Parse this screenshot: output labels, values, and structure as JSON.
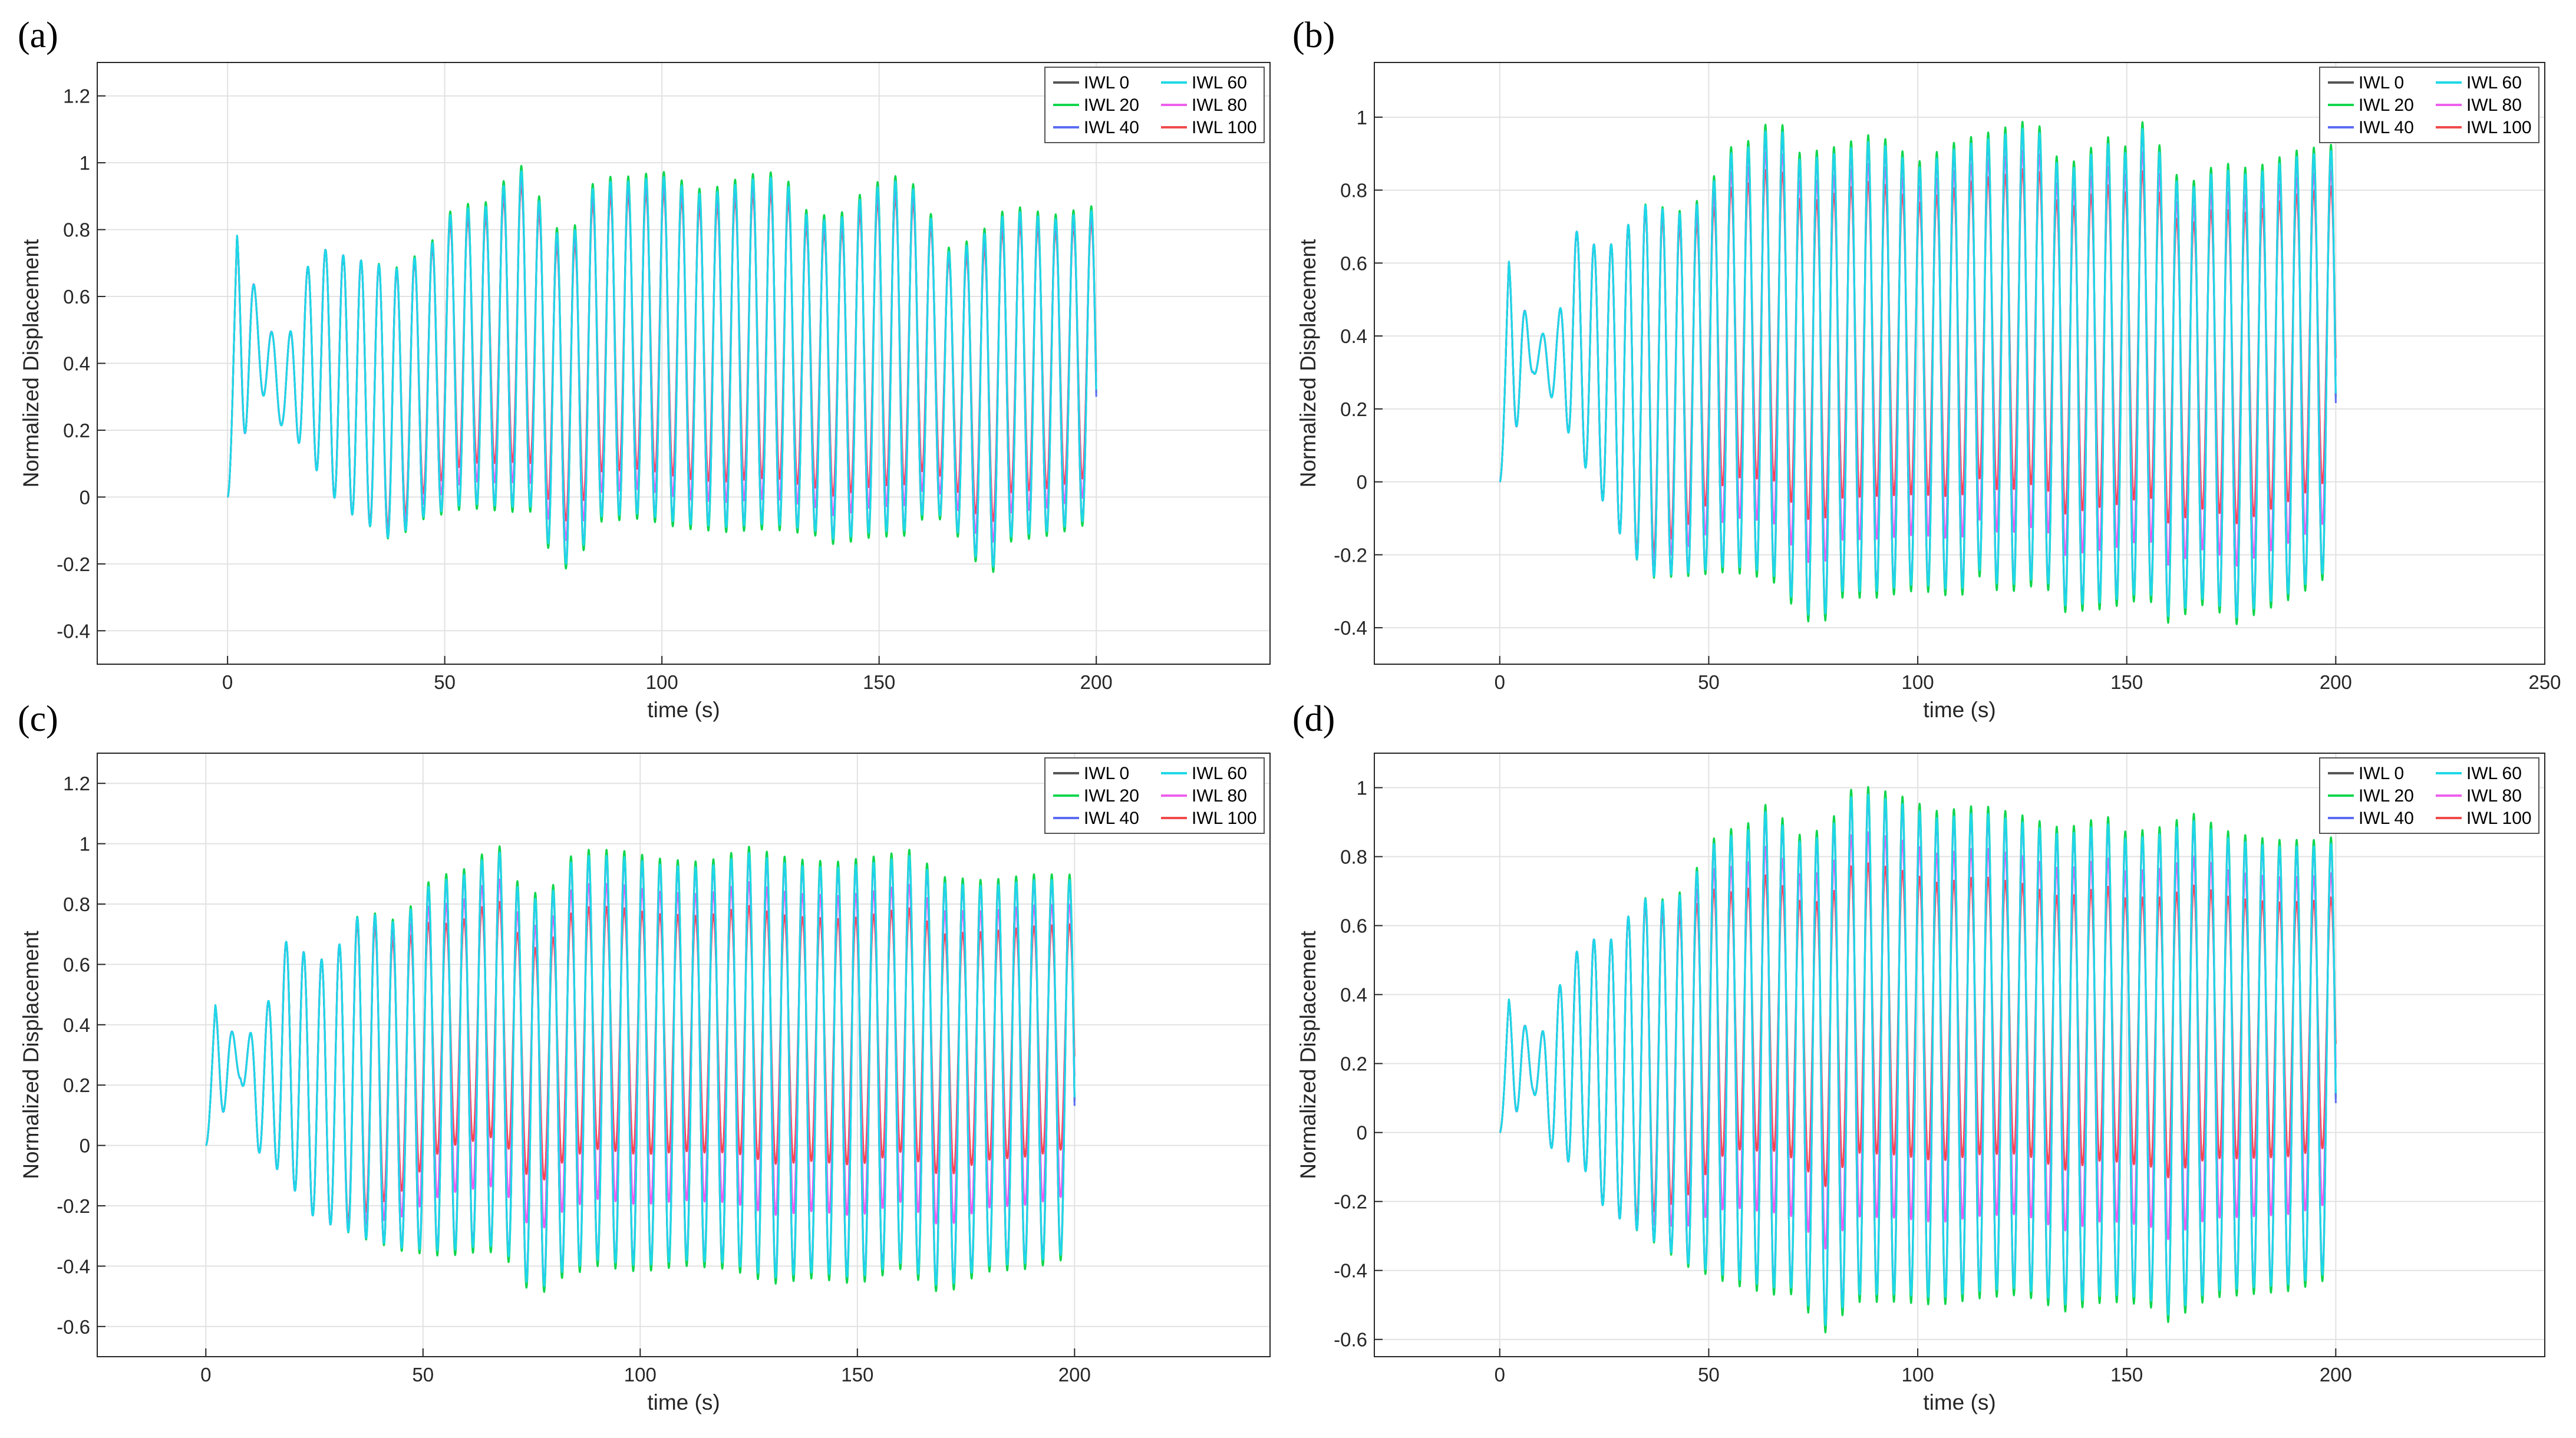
{
  "chart_data": [
    {
      "panel": "(a)",
      "type": "line",
      "xlabel": "time (s)",
      "ylabel": "Normalized Displacement",
      "xlim": [
        -30,
        240
      ],
      "ylim": [
        -0.5,
        1.3
      ],
      "xticks": [
        0,
        50,
        100,
        150,
        200
      ],
      "xtick_labels": [
        "0",
        "50",
        "100",
        "150",
        "200"
      ],
      "yticks": [
        -0.4,
        -0.2,
        0,
        0.2,
        0.4,
        0.6,
        0.8,
        1,
        1.2
      ],
      "ytick_labels": [
        "-0.4",
        "-0.2",
        "0",
        "0.2",
        "0.4",
        "0.6",
        "0.8",
        "1",
        "1.2"
      ],
      "grid": true,
      "legend_position": "top-right",
      "legend": [
        "IWL 0",
        "IWL 20",
        "IWL 40",
        "IWL 60",
        "IWL 80",
        "IWL 100"
      ],
      "series": [
        {
          "name": "IWL 0",
          "color": "#555555"
        },
        {
          "name": "IWL 20",
          "color": "#11d64c"
        },
        {
          "name": "IWL 40",
          "color": "#5b6cf2"
        },
        {
          "name": "IWL 60",
          "color": "#1ed8e8"
        },
        {
          "name": "IWL 80",
          "color": "#ee5fee"
        },
        {
          "name": "IWL 100",
          "color": "#f04a4a"
        }
      ],
      "signal": {
        "t_start": 0,
        "t_end": 200,
        "period": 4.1,
        "max_envelope": [
          [
            0,
            0.79
          ],
          [
            3,
            0.79
          ],
          [
            7,
            0.59
          ],
          [
            13,
            0.41
          ],
          [
            16,
            0.59
          ],
          [
            20,
            0.75
          ],
          [
            30,
            0.71
          ],
          [
            40,
            0.68
          ],
          [
            48,
            0.77
          ],
          [
            52,
            0.86
          ],
          [
            60,
            0.87
          ],
          [
            67,
            0.99
          ],
          [
            72,
            0.88
          ],
          [
            78,
            0.74
          ],
          [
            85,
            0.95
          ],
          [
            90,
            0.94
          ],
          [
            100,
            0.96
          ],
          [
            110,
            0.9
          ],
          [
            120,
            0.95
          ],
          [
            128,
            0.96
          ],
          [
            132,
            0.85
          ],
          [
            140,
            0.82
          ],
          [
            148,
            0.92
          ],
          [
            155,
            0.95
          ],
          [
            160,
            0.9
          ],
          [
            165,
            0.73
          ],
          [
            172,
            0.76
          ],
          [
            180,
            0.86
          ],
          [
            190,
            0.83
          ],
          [
            200,
            0.86
          ]
        ],
        "min_envelope": [
          [
            0,
            0.0
          ],
          [
            7,
            0.33
          ],
          [
            13,
            0.2
          ],
          [
            16,
            0.17
          ],
          [
            26,
            -0.03
          ],
          [
            38,
            -0.13
          ],
          [
            45,
            -0.06
          ],
          [
            55,
            -0.02
          ],
          [
            65,
            -0.03
          ],
          [
            70,
            -0.03
          ],
          [
            76,
            -0.2
          ],
          [
            80,
            -0.2
          ],
          [
            85,
            -0.06
          ],
          [
            95,
            -0.05
          ],
          [
            105,
            -0.08
          ],
          [
            115,
            -0.09
          ],
          [
            125,
            -0.08
          ],
          [
            135,
            -0.1
          ],
          [
            140,
            -0.13
          ],
          [
            150,
            -0.1
          ],
          [
            155,
            -0.11
          ],
          [
            162,
            -0.03
          ],
          [
            170,
            -0.13
          ],
          [
            175,
            -0.24
          ],
          [
            180,
            -0.12
          ],
          [
            190,
            -0.1
          ],
          [
            200,
            -0.06
          ]
        ],
        "min_reduction_tail": 0.28,
        "series_spread": 0.18
      }
    },
    {
      "panel": "(b)",
      "type": "line",
      "xlabel": "time (s)",
      "ylabel": "Normalized Displacement",
      "xlim": [
        -30,
        250
      ],
      "ylim": [
        -0.5,
        1.15
      ],
      "xticks": [
        0,
        50,
        100,
        150,
        200,
        250
      ],
      "xtick_labels": [
        "0",
        "50",
        "100",
        "150",
        "200",
        "250"
      ],
      "yticks": [
        -0.4,
        -0.2,
        0,
        0.2,
        0.4,
        0.6,
        0.8,
        1
      ],
      "ytick_labels": [
        "-0.4",
        "-0.2",
        "0",
        "0.2",
        "0.4",
        "0.6",
        "0.8",
        "1"
      ],
      "grid": true,
      "legend_position": "top-right",
      "legend": [
        "IWL 0",
        "IWL 20",
        "IWL 40",
        "IWL 60",
        "IWL 80",
        "IWL 100"
      ],
      "series": [
        {
          "name": "IWL 0",
          "color": "#555555"
        },
        {
          "name": "IWL 20",
          "color": "#11d64c"
        },
        {
          "name": "IWL 40",
          "color": "#5b6cf2"
        },
        {
          "name": "IWL 60",
          "color": "#1ed8e8"
        },
        {
          "name": "IWL 80",
          "color": "#ee5fee"
        },
        {
          "name": "IWL 100",
          "color": "#f04a4a"
        }
      ],
      "signal": {
        "t_start": 0,
        "t_end": 200,
        "period": 4.1,
        "max_envelope": [
          [
            0,
            0.61
          ],
          [
            3,
            0.61
          ],
          [
            8,
            0.38
          ],
          [
            14,
            0.45
          ],
          [
            18,
            0.69
          ],
          [
            25,
            0.63
          ],
          [
            35,
            0.76
          ],
          [
            45,
            0.73
          ],
          [
            50,
            0.8
          ],
          [
            55,
            0.9
          ],
          [
            60,
            0.92
          ],
          [
            66,
            0.99
          ],
          [
            72,
            0.88
          ],
          [
            80,
            0.9
          ],
          [
            90,
            0.94
          ],
          [
            100,
            0.86
          ],
          [
            110,
            0.92
          ],
          [
            120,
            0.95
          ],
          [
            128,
            0.98
          ],
          [
            135,
            0.84
          ],
          [
            145,
            0.93
          ],
          [
            150,
            0.9
          ],
          [
            155,
            0.99
          ],
          [
            160,
            0.84
          ],
          [
            165,
            0.8
          ],
          [
            172,
            0.86
          ],
          [
            180,
            0.84
          ],
          [
            190,
            0.89
          ],
          [
            200,
            0.91
          ]
        ],
        "min_envelope": [
          [
            0,
            0.0
          ],
          [
            8,
            0.3
          ],
          [
            12,
            0.24
          ],
          [
            20,
            0.05
          ],
          [
            30,
            -0.17
          ],
          [
            36,
            -0.26
          ],
          [
            45,
            -0.25
          ],
          [
            55,
            -0.23
          ],
          [
            65,
            -0.25
          ],
          [
            70,
            -0.32
          ],
          [
            76,
            -0.39
          ],
          [
            82,
            -0.3
          ],
          [
            90,
            -0.3
          ],
          [
            100,
            -0.28
          ],
          [
            110,
            -0.3
          ],
          [
            115,
            -0.24
          ],
          [
            120,
            -0.29
          ],
          [
            130,
            -0.26
          ],
          [
            135,
            -0.34
          ],
          [
            145,
            -0.33
          ],
          [
            155,
            -0.3
          ],
          [
            160,
            -0.37
          ],
          [
            170,
            -0.31
          ],
          [
            175,
            -0.38
          ],
          [
            180,
            -0.35
          ],
          [
            190,
            -0.3
          ],
          [
            200,
            -0.23
          ]
        ],
        "min_reduction_tail": 0.3,
        "series_spread": 0.3
      }
    },
    {
      "panel": "(c)",
      "type": "line",
      "xlabel": "time (s)",
      "ylabel": "Normalized Displacement",
      "xlim": [
        -25,
        245
      ],
      "ylim": [
        -0.7,
        1.3
      ],
      "xticks": [
        0,
        50,
        100,
        150,
        200
      ],
      "xtick_labels": [
        "0",
        "50",
        "100",
        "150",
        "200"
      ],
      "yticks": [
        -0.6,
        -0.4,
        -0.2,
        0,
        0.2,
        0.4,
        0.6,
        0.8,
        1,
        1.2
      ],
      "ytick_labels": [
        "-0.6",
        "-0.4",
        "-0.2",
        "0",
        "0.2",
        "0.4",
        "0.6",
        "0.8",
        "1",
        "1.2"
      ],
      "grid": true,
      "legend_position": "top-right",
      "legend": [
        "IWL 0",
        "IWL 20",
        "IWL 40",
        "IWL 60",
        "IWL 80",
        "IWL 100"
      ],
      "series": [
        {
          "name": "IWL 0",
          "color": "#555555"
        },
        {
          "name": "IWL 20",
          "color": "#11d64c"
        },
        {
          "name": "IWL 40",
          "color": "#5b6cf2"
        },
        {
          "name": "IWL 60",
          "color": "#1ed8e8"
        },
        {
          "name": "IWL 80",
          "color": "#ee5fee"
        },
        {
          "name": "IWL 100",
          "color": "#f04a4a"
        }
      ],
      "signal": {
        "t_start": 0,
        "t_end": 200,
        "period": 4.1,
        "max_envelope": [
          [
            0,
            0.47
          ],
          [
            3,
            0.47
          ],
          [
            8,
            0.32
          ],
          [
            14,
            0.46
          ],
          [
            19,
            0.7
          ],
          [
            25,
            0.6
          ],
          [
            30,
            0.65
          ],
          [
            36,
            0.78
          ],
          [
            45,
            0.73
          ],
          [
            50,
            0.85
          ],
          [
            55,
            0.88
          ],
          [
            60,
            0.9
          ],
          [
            67,
            0.99
          ],
          [
            72,
            0.85
          ],
          [
            78,
            0.8
          ],
          [
            85,
            0.96
          ],
          [
            95,
            0.96
          ],
          [
            105,
            0.93
          ],
          [
            115,
            0.92
          ],
          [
            125,
            0.97
          ],
          [
            135,
            0.93
          ],
          [
            145,
            0.92
          ],
          [
            155,
            0.94
          ],
          [
            162,
            0.96
          ],
          [
            170,
            0.87
          ],
          [
            180,
            0.86
          ],
          [
            190,
            0.88
          ],
          [
            200,
            0.88
          ]
        ],
        "min_envelope": [
          [
            0,
            0.0
          ],
          [
            8,
            0.22
          ],
          [
            12,
            -0.02
          ],
          [
            18,
            -0.1
          ],
          [
            25,
            -0.24
          ],
          [
            35,
            -0.3
          ],
          [
            45,
            -0.34
          ],
          [
            55,
            -0.35
          ],
          [
            65,
            -0.33
          ],
          [
            70,
            -0.37
          ],
          [
            76,
            -0.5
          ],
          [
            80,
            -0.43
          ],
          [
            90,
            -0.38
          ],
          [
            100,
            -0.4
          ],
          [
            110,
            -0.38
          ],
          [
            120,
            -0.39
          ],
          [
            125,
            -0.41
          ],
          [
            130,
            -0.44
          ],
          [
            140,
            -0.42
          ],
          [
            150,
            -0.44
          ],
          [
            160,
            -0.39
          ],
          [
            170,
            -0.48
          ],
          [
            175,
            -0.43
          ],
          [
            180,
            -0.4
          ],
          [
            190,
            -0.39
          ],
          [
            200,
            -0.35
          ]
        ],
        "min_reduction_tail": 0.4,
        "series_spread": 0.4
      }
    },
    {
      "panel": "(d)",
      "type": "line",
      "xlabel": "time (s)",
      "ylabel": "Normalized Displacement",
      "xlim": [
        -30,
        250
      ],
      "ylim": [
        -0.65,
        1.1
      ],
      "xticks": [
        0,
        50,
        100,
        150,
        200
      ],
      "xtick_labels": [
        "0",
        "50",
        "100",
        "150",
        "200"
      ],
      "yticks": [
        -0.6,
        -0.4,
        -0.2,
        0,
        0.2,
        0.4,
        0.6,
        0.8,
        1
      ],
      "ytick_labels": [
        "-0.6",
        "-0.4",
        "-0.2",
        "0",
        "0.2",
        "0.4",
        "0.6",
        "0.8",
        "1"
      ],
      "grid": true,
      "legend_position": "top-right",
      "legend": [
        "IWL 0",
        "IWL 20",
        "IWL 40",
        "IWL 60",
        "IWL 80",
        "IWL 100"
      ],
      "series": [
        {
          "name": "IWL 0",
          "color": "#555555"
        },
        {
          "name": "IWL 20",
          "color": "#11d64c"
        },
        {
          "name": "IWL 40",
          "color": "#5b6cf2"
        },
        {
          "name": "IWL 60",
          "color": "#1ed8e8"
        },
        {
          "name": "IWL 80",
          "color": "#ee5fee"
        },
        {
          "name": "IWL 100",
          "color": "#f04a4a"
        }
      ],
      "signal": {
        "t_start": 0,
        "t_end": 200,
        "period": 4.1,
        "max_envelope": [
          [
            0,
            0.39
          ],
          [
            3,
            0.39
          ],
          [
            8,
            0.26
          ],
          [
            12,
            0.32
          ],
          [
            16,
            0.5
          ],
          [
            22,
            0.56
          ],
          [
            28,
            0.56
          ],
          [
            33,
            0.68
          ],
          [
            40,
            0.67
          ],
          [
            45,
            0.7
          ],
          [
            50,
            0.83
          ],
          [
            55,
            0.86
          ],
          [
            60,
            0.88
          ],
          [
            65,
            0.95
          ],
          [
            70,
            0.84
          ],
          [
            78,
            0.86
          ],
          [
            85,
            0.99
          ],
          [
            95,
            0.96
          ],
          [
            105,
            0.91
          ],
          [
            115,
            0.93
          ],
          [
            125,
            0.9
          ],
          [
            135,
            0.86
          ],
          [
            145,
            0.9
          ],
          [
            150,
            0.85
          ],
          [
            160,
            0.87
          ],
          [
            165,
            0.91
          ],
          [
            175,
            0.85
          ],
          [
            185,
            0.83
          ],
          [
            195,
            0.83
          ],
          [
            200,
            0.84
          ]
        ],
        "min_envelope": [
          [
            0,
            0.0
          ],
          [
            8,
            0.12
          ],
          [
            13,
            -0.07
          ],
          [
            20,
            -0.1
          ],
          [
            25,
            -0.22
          ],
          [
            35,
            -0.3
          ],
          [
            45,
            -0.38
          ],
          [
            55,
            -0.42
          ],
          [
            65,
            -0.45
          ],
          [
            70,
            -0.45
          ],
          [
            78,
            -0.56
          ],
          [
            85,
            -0.47
          ],
          [
            95,
            -0.47
          ],
          [
            105,
            -0.48
          ],
          [
            115,
            -0.46
          ],
          [
            125,
            -0.45
          ],
          [
            135,
            -0.5
          ],
          [
            145,
            -0.47
          ],
          [
            155,
            -0.48
          ],
          [
            160,
            -0.53
          ],
          [
            170,
            -0.46
          ],
          [
            180,
            -0.45
          ],
          [
            190,
            -0.44
          ],
          [
            200,
            -0.4
          ]
        ],
        "min_reduction_tail": 0.42,
        "series_spread": 0.42
      }
    }
  ]
}
